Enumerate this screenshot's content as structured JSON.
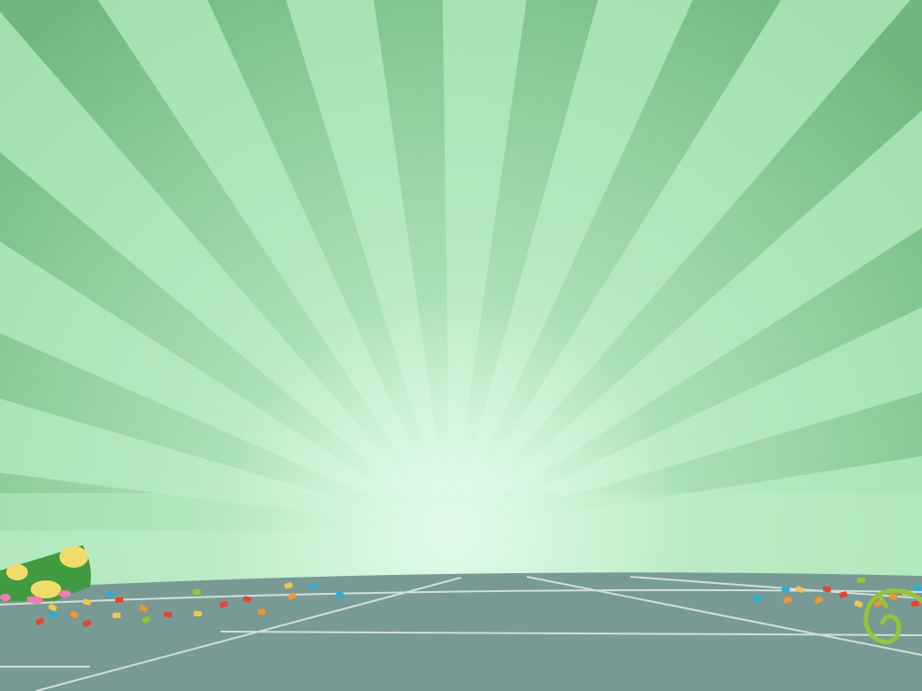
{
  "scene": {
    "description_free": true,
    "background": {
      "sky_light": "#cdf3d7",
      "sky_mid": "#a8e2b6",
      "ray_dark": "#7cc08a",
      "ray_light": "#b6e8c2"
    },
    "floor": {
      "color": "#789a94",
      "line_color": "#dde6e3"
    },
    "props": {
      "party_hat_left": {
        "icon": "party-hat-icon",
        "base": "#3f9a40",
        "dots": "#f1dc6a"
      },
      "streamer_right": {
        "icon": "curled-streamer-icon",
        "color": "#96c43a"
      }
    },
    "confetti_colors": [
      "#e8432f",
      "#f4962b",
      "#2ab0d8",
      "#f07ab5",
      "#93c53b",
      "#f3c64a"
    ]
  }
}
